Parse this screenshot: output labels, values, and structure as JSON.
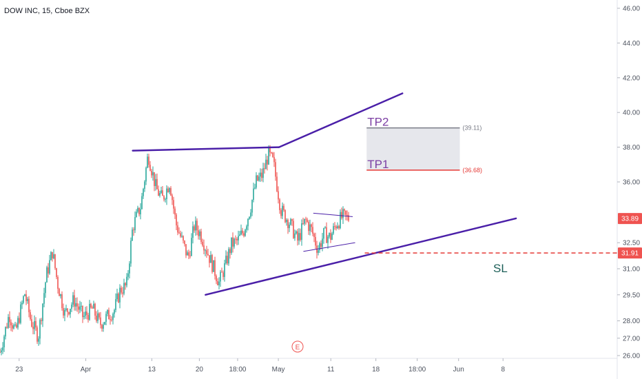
{
  "header": {
    "symbol_line": "DOW INC, 15, Cboe BZX"
  },
  "chart_data": {
    "type": "candlestick",
    "ylim": [
      25.9,
      46.6
    ],
    "grid": false,
    "y_ticks": [
      {
        "v": 46.0,
        "label": "46.00"
      },
      {
        "v": 44.0,
        "label": "44.00"
      },
      {
        "v": 42.0,
        "label": "42.00"
      },
      {
        "v": 40.0,
        "label": "40.00"
      },
      {
        "v": 38.0,
        "label": "38.00"
      },
      {
        "v": 36.0,
        "label": "36.00"
      },
      {
        "v": 32.5,
        "label": "32.50"
      },
      {
        "v": 31.0,
        "label": "31.00"
      },
      {
        "v": 29.5,
        "label": "29.50"
      },
      {
        "v": 28.0,
        "label": "28.00"
      },
      {
        "v": 27.0,
        "label": "27.00"
      },
      {
        "v": 26.0,
        "label": "26.00"
      }
    ],
    "x_ticks": [
      {
        "t": 0.031,
        "label": "23"
      },
      {
        "t": 0.139,
        "label": "Apr"
      },
      {
        "t": 0.246,
        "label": "13"
      },
      {
        "t": 0.323,
        "label": "20"
      },
      {
        "t": 0.385,
        "label": "18:00"
      },
      {
        "t": 0.451,
        "label": "May"
      },
      {
        "t": 0.536,
        "label": "11"
      },
      {
        "t": 0.609,
        "label": "18"
      },
      {
        "t": 0.676,
        "label": "18:00"
      },
      {
        "t": 0.743,
        "label": "Jun"
      },
      {
        "t": 0.815,
        "label": "8"
      }
    ],
    "price_badges": [
      {
        "v": 33.89,
        "label": "33.89",
        "color": "#ef5350"
      },
      {
        "v": 31.91,
        "label": "31.91",
        "color": "#ef5350"
      }
    ],
    "colors": {
      "up": "#26a69a",
      "down": "#ef5350",
      "lines": "#4a1fa8",
      "sl": "#e53935"
    },
    "price_path": [
      [
        0.0,
        26.2
      ],
      [
        0.015,
        28.4
      ],
      [
        0.025,
        27.3
      ],
      [
        0.04,
        29.6
      ],
      [
        0.05,
        28.0
      ],
      [
        0.062,
        27.1
      ],
      [
        0.075,
        30.6
      ],
      [
        0.085,
        32.0
      ],
      [
        0.093,
        30.2
      ],
      [
        0.105,
        28.4
      ],
      [
        0.12,
        29.2
      ],
      [
        0.135,
        28.2
      ],
      [
        0.15,
        28.7
      ],
      [
        0.162,
        27.8
      ],
      [
        0.175,
        28.3
      ],
      [
        0.185,
        28.6
      ],
      [
        0.195,
        29.8
      ],
      [
        0.205,
        30.0
      ],
      [
        0.215,
        33.4
      ],
      [
        0.228,
        34.6
      ],
      [
        0.24,
        37.6
      ],
      [
        0.253,
        35.6
      ],
      [
        0.263,
        35.0
      ],
      [
        0.275,
        36.0
      ],
      [
        0.285,
        33.6
      ],
      [
        0.295,
        32.6
      ],
      [
        0.305,
        31.6
      ],
      [
        0.315,
        33.5
      ],
      [
        0.325,
        33.0
      ],
      [
        0.34,
        31.6
      ],
      [
        0.355,
        30.2
      ],
      [
        0.365,
        31.2
      ],
      [
        0.375,
        32.4
      ],
      [
        0.385,
        32.6
      ],
      [
        0.395,
        33.2
      ],
      [
        0.405,
        34.4
      ],
      [
        0.415,
        36.0
      ],
      [
        0.425,
        36.4
      ],
      [
        0.435,
        37.6
      ],
      [
        0.443,
        37.1
      ],
      [
        0.455,
        34.4
      ],
      [
        0.47,
        33.6
      ],
      [
        0.482,
        32.6
      ],
      [
        0.495,
        33.8
      ],
      [
        0.505,
        33.2
      ],
      [
        0.515,
        32.1
      ],
      [
        0.525,
        33.0
      ],
      [
        0.535,
        32.8
      ],
      [
        0.545,
        33.6
      ],
      [
        0.555,
        34.0
      ],
      [
        0.565,
        33.9
      ]
    ],
    "trend_lines": [
      [
        [
          0.215,
          37.8
        ],
        [
          0.452,
          38.0
        ]
      ],
      [
        [
          0.452,
          38.0
        ],
        [
          0.652,
          41.1
        ]
      ],
      [
        [
          0.333,
          29.5
        ],
        [
          0.836,
          33.9
        ]
      ],
      [
        [
          0.508,
          34.2
        ],
        [
          0.571,
          34.0
        ]
      ],
      [
        [
          0.492,
          32.0
        ],
        [
          0.575,
          32.5
        ]
      ]
    ],
    "sl_line": {
      "x_from": 0.591,
      "v": 31.91
    },
    "tp_box": {
      "x_from": 0.594,
      "x_to": 0.745,
      "top": 39.11,
      "bottom": 36.68
    },
    "annotations": {
      "tp2": {
        "label": "TP2",
        "value_label": "(39.11)"
      },
      "tp1": {
        "label": "TP1",
        "value_label": "(36.68)"
      },
      "sl": {
        "label": "SL"
      },
      "event_marker": {
        "label": "E"
      }
    }
  }
}
